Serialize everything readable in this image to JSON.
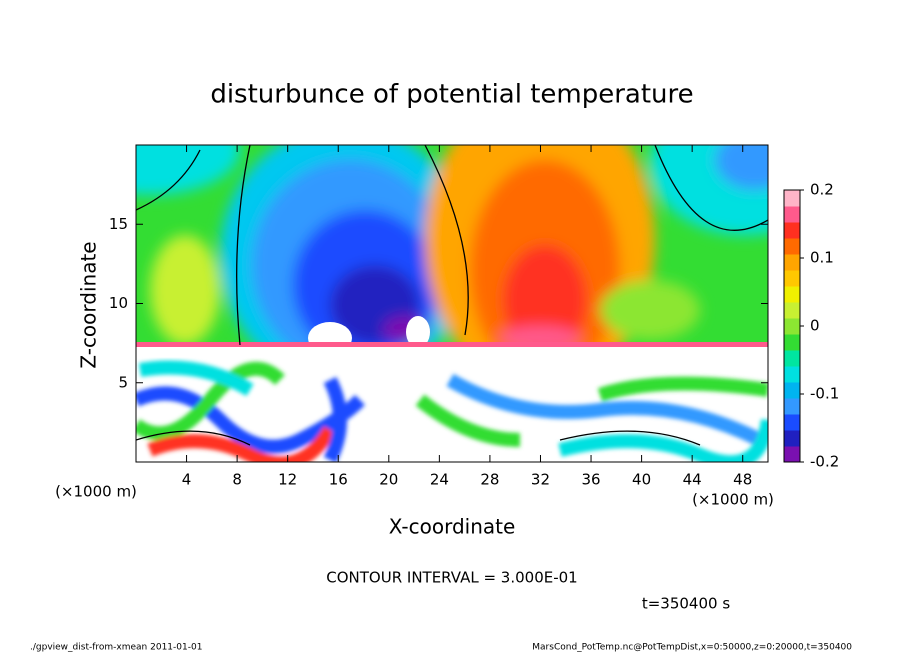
{
  "chart_data": {
    "type": "contour",
    "title": "disturbunce of potential temperature",
    "xlabel": "X-coordinate",
    "ylabel": "Z-coordinate",
    "x_unit": "(×1000 m)",
    "y_unit": "(×1000 m)",
    "xlim": [
      0,
      50
    ],
    "ylim": [
      0,
      20
    ],
    "xticks": [
      4,
      8,
      12,
      16,
      20,
      24,
      28,
      32,
      36,
      40,
      44,
      48
    ],
    "yticks": [
      5,
      10,
      15
    ],
    "clim": [
      -0.2,
      0.2
    ],
    "cticks": [
      -0.2,
      -0.1,
      0,
      0.1,
      0.2
    ],
    "colors": [
      "#7a10b0",
      "#2020c0",
      "#1a4cff",
      "#3399ff",
      "#00b4f0",
      "#00e0e0",
      "#00e6a0",
      "#33dd33",
      "#8ce632",
      "#c8f032",
      "#f0f000",
      "#ffc800",
      "#ffa500",
      "#ff6a00",
      "#ff3020",
      "#ff5a8c",
      "#ffb4c8"
    ],
    "annotation": "CONTOUR INTERVAL = 3.000E-01",
    "time_label": "t=350400 s",
    "footer_left": "./gpview_dist-from-xmean  2011-01-01",
    "footer_right": "MarsCond_PotTemp.nc@PotTempDist,x=0:50000,z=0:20000,t=350400"
  }
}
